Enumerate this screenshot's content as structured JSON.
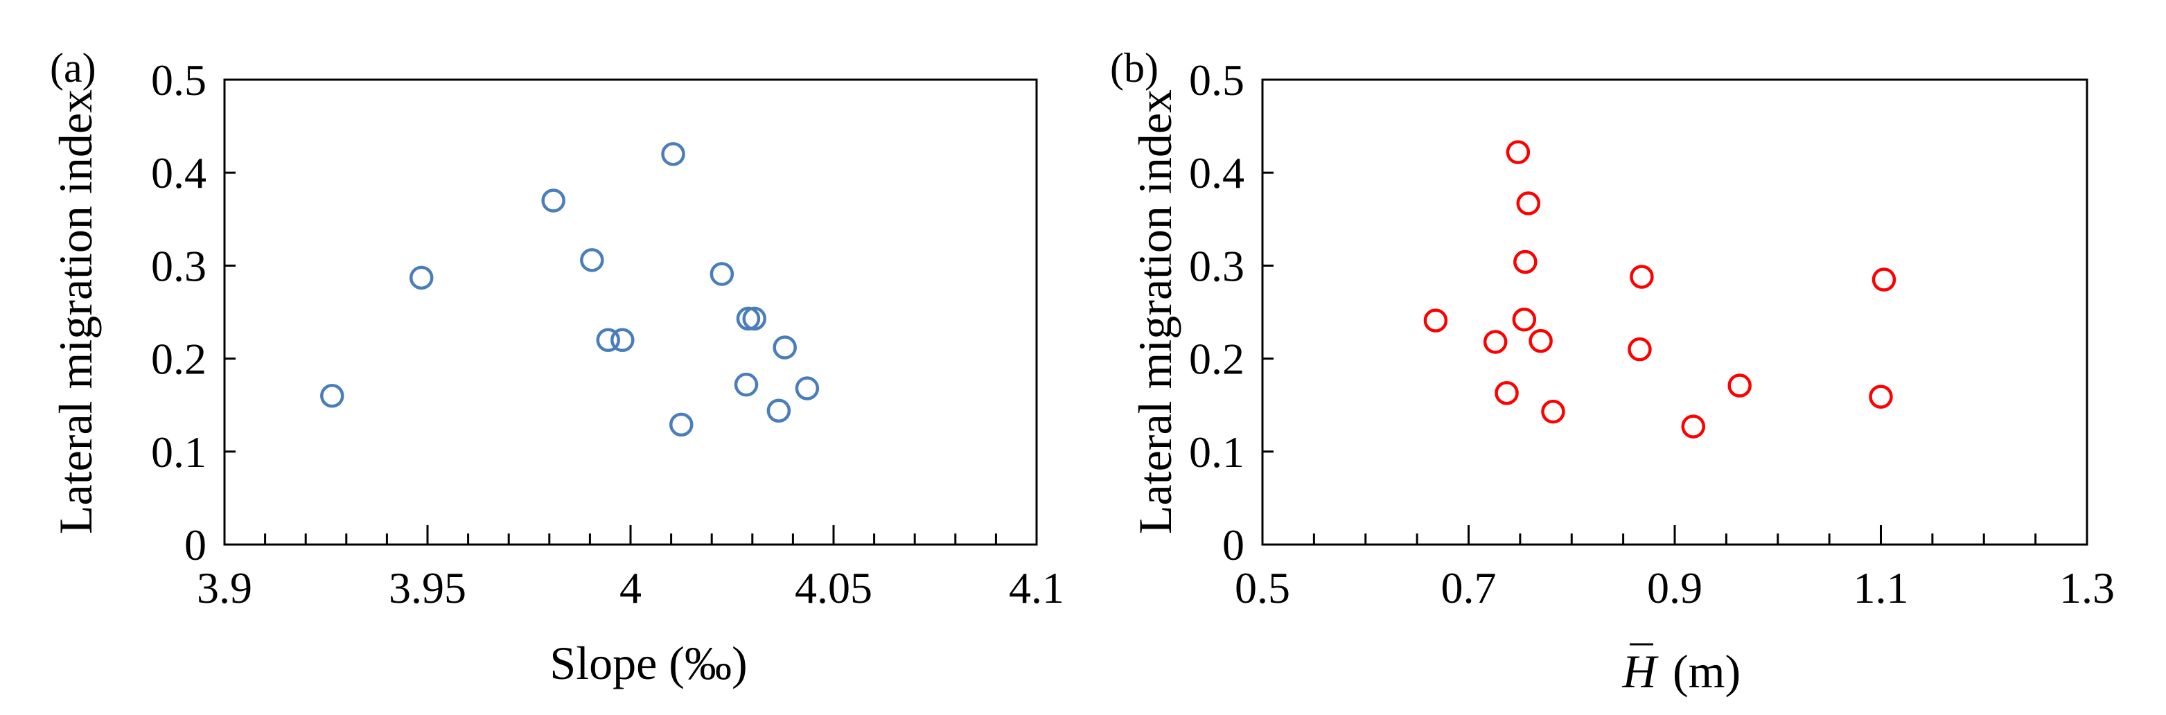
{
  "colors": {
    "panel_a_marker": "#4a7ebb",
    "panel_b_marker": "#ff0000",
    "frame": "#000000",
    "background": "#ffffff"
  },
  "chart_data": [
    {
      "type": "scatter",
      "panel_tag": "(a)",
      "xlabel": "Slope (‰)",
      "ylabel": "Lateral migration index",
      "xlim": [
        3.9,
        4.1
      ],
      "ylim": [
        0,
        0.5
      ],
      "xticks": [
        "3.9",
        "3.95",
        "4",
        "4.05",
        "4.1"
      ],
      "yticks": [
        "0",
        "0.1",
        "0.2",
        "0.3",
        "0.4",
        "0.5"
      ],
      "x_minor_step": 0.01,
      "grid": false,
      "series": [
        {
          "marker": "open-circle",
          "points": [
            {
              "x": 3.9265,
              "y": 0.16
            },
            {
              "x": 3.9485,
              "y": 0.287
            },
            {
              "x": 3.981,
              "y": 0.37
            },
            {
              "x": 3.9905,
              "y": 0.306
            },
            {
              "x": 3.9945,
              "y": 0.22
            },
            {
              "x": 3.998,
              "y": 0.22
            },
            {
              "x": 4.0105,
              "y": 0.42
            },
            {
              "x": 4.0125,
              "y": 0.129
            },
            {
              "x": 4.0225,
              "y": 0.291
            },
            {
              "x": 4.0285,
              "y": 0.172
            },
            {
              "x": 4.029,
              "y": 0.243
            },
            {
              "x": 4.0305,
              "y": 0.243
            },
            {
              "x": 4.0365,
              "y": 0.144
            },
            {
              "x": 4.038,
              "y": 0.212
            },
            {
              "x": 4.0435,
              "y": 0.168
            }
          ]
        }
      ]
    },
    {
      "type": "scatter",
      "panel_tag": "(b)",
      "xlabel_symbol": "H",
      "xlabel_unit": "(m)",
      "ylabel": "Lateral migration index",
      "xlim": [
        0.5,
        1.3
      ],
      "ylim": [
        0,
        0.5
      ],
      "xticks": [
        "0.5",
        "0.7",
        "0.9",
        "1.1",
        "1.3"
      ],
      "yticks": [
        "0",
        "0.1",
        "0.2",
        "0.3",
        "0.4",
        "0.5"
      ],
      "x_minor_step": 0.05,
      "grid": false,
      "series": [
        {
          "marker": "open-circle",
          "points": [
            {
              "x": 0.668,
              "y": 0.241
            },
            {
              "x": 0.726,
              "y": 0.218
            },
            {
              "x": 0.737,
              "y": 0.163
            },
            {
              "x": 0.748,
              "y": 0.422
            },
            {
              "x": 0.754,
              "y": 0.242
            },
            {
              "x": 0.755,
              "y": 0.304
            },
            {
              "x": 0.758,
              "y": 0.367
            },
            {
              "x": 0.77,
              "y": 0.219
            },
            {
              "x": 0.782,
              "y": 0.143
            },
            {
              "x": 0.866,
              "y": 0.21
            },
            {
              "x": 0.868,
              "y": 0.288
            },
            {
              "x": 0.918,
              "y": 0.127
            },
            {
              "x": 0.963,
              "y": 0.171
            },
            {
              "x": 1.1,
              "y": 0.159
            },
            {
              "x": 1.103,
              "y": 0.285
            }
          ]
        }
      ]
    }
  ]
}
